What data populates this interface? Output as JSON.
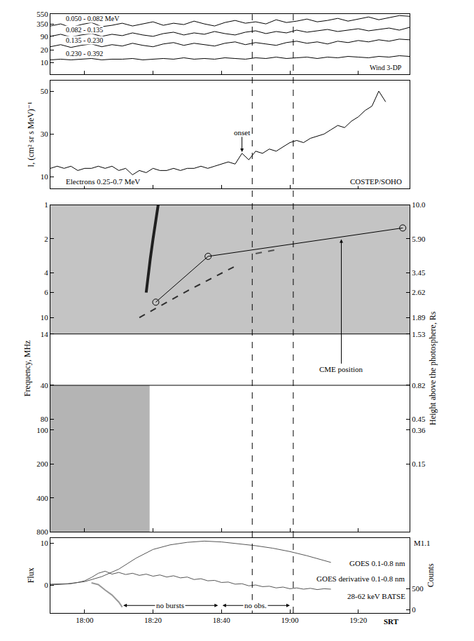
{
  "chart_data": {
    "type": "multi_panel",
    "xlim": [
      1070,
      1175
    ],
    "xticks": [
      {
        "value": 1080,
        "label": "18:00"
      },
      {
        "value": 1100,
        "label": "18:20"
      },
      {
        "value": 1120,
        "label": "18:40"
      },
      {
        "value": 1140,
        "label": "19:00"
      },
      {
        "value": 1160,
        "label": "19:20"
      }
    ],
    "x_unit": "SRT",
    "dashed_lines": [
      1129,
      1141
    ],
    "panels": [
      {
        "type": "line",
        "instrument": "Wind 3-DP",
        "ylim": [
          0,
          87
        ],
        "yticks": [
          {
            "value": 17,
            "label": "10"
          },
          {
            "value": 35,
            "label": "20"
          },
          {
            "value": 55,
            "label": "90"
          },
          {
            "value": 73,
            "label": "350"
          },
          {
            "value": 87,
            "label": "550"
          }
        ],
        "x": [
          1070,
          1073,
          1076,
          1079,
          1082,
          1085,
          1088,
          1091,
          1094,
          1097,
          1100,
          1103,
          1106,
          1109,
          1112,
          1115,
          1118,
          1121,
          1124,
          1127,
          1130,
          1133,
          1136,
          1139,
          1142,
          1145,
          1148,
          1151,
          1154,
          1157,
          1160,
          1163,
          1166,
          1169,
          1172,
          1175
        ],
        "series": [
          {
            "name": "0.050 - 0.082 MeV",
            "color": "#000000",
            "values": [
              70,
              73,
              68,
              72,
              75,
              69,
              71,
              74,
              70,
              73,
              76,
              71,
              74,
              72,
              77,
              73,
              70,
              75,
              78,
              74,
              76,
              73,
              79,
              75,
              77,
              80,
              76,
              78,
              81,
              77,
              80,
              83,
              79,
              82,
              85,
              84
            ]
          },
          {
            "name": "0.082 - 0.135",
            "color": "#000000",
            "values": [
              55,
              58,
              54,
              57,
              59,
              55,
              58,
              56,
              60,
              57,
              55,
              59,
              61,
              57,
              60,
              58,
              62,
              59,
              57,
              61,
              63,
              59,
              62,
              60,
              64,
              61,
              63,
              65,
              62,
              64,
              66,
              63,
              65,
              67,
              64,
              68
            ]
          },
          {
            "name": "0.135 - 0.230",
            "color": "#000000",
            "values": [
              40,
              43,
              39,
              42,
              44,
              40,
              43,
              41,
              45,
              42,
              40,
              44,
              46,
              42,
              45,
              43,
              41,
              45,
              47,
              43,
              46,
              44,
              42,
              46,
              48,
              45,
              47,
              44,
              48,
              46,
              49,
              47,
              50,
              48,
              51,
              50
            ]
          },
          {
            "name": "0.230 - 0.392",
            "color": "#000000",
            "values": [
              21,
              22,
              21,
              22,
              23,
              21,
              22,
              22,
              23,
              21,
              22,
              23,
              22,
              24,
              22,
              23,
              22,
              24,
              23,
              22,
              24,
              23,
              25,
              23,
              24,
              25,
              23,
              25,
              24,
              26,
              25,
              24,
              26,
              25,
              27,
              26
            ]
          }
        ]
      },
      {
        "type": "line",
        "instrument": "COSTEP/SOHO",
        "ylabel": "I, (cm² sr s MeV)⁻¹",
        "ylim": [
          4.5,
          55
        ],
        "yticks": [
          10,
          30,
          50
        ],
        "x": [
          1070,
          1072,
          1074,
          1076,
          1078,
          1080,
          1082,
          1084,
          1086,
          1088,
          1090,
          1092,
          1094,
          1096,
          1098,
          1100,
          1102,
          1104,
          1106,
          1108,
          1110,
          1112,
          1114,
          1116,
          1118,
          1120,
          1122,
          1124,
          1126,
          1128,
          1130,
          1132,
          1134,
          1136,
          1138,
          1140,
          1142,
          1144,
          1146,
          1148,
          1150,
          1152,
          1154,
          1156,
          1158,
          1160,
          1162,
          1164,
          1166,
          1168
        ],
        "series": [
          {
            "name": "Electrons 0.25-0.7 MeV",
            "color": "#000000",
            "values": [
              14,
              15,
              14,
              15,
              13,
              14,
              14,
              15,
              14,
              15,
              13,
              14,
              11,
              13,
              12,
              14,
              13,
              13,
              14,
              13,
              14,
              14,
              15,
              14,
              15,
              16,
              17,
              16,
              21,
              18,
              22,
              21,
              23,
              22,
              24,
              26,
              27,
              26,
              28,
              29,
              30,
              32,
              34,
              33,
              36,
              38,
              41,
              43,
              50,
              45
            ]
          }
        ],
        "onset": {
          "text": "onset",
          "x": 1126,
          "y": 21
        }
      },
      {
        "type": "spectrogram",
        "log": "y",
        "ylabel": "Frequency, MHz",
        "y2label": "Height above the photosphere, Rs",
        "ylim": [
          800,
          1
        ],
        "yticks": [
          1,
          2,
          4,
          6,
          10,
          14,
          40,
          80,
          100,
          200,
          400,
          800
        ],
        "y2lim": [
          800,
          1
        ],
        "y2ticks": [
          {
            "value": 1,
            "label": "10.0"
          },
          {
            "value": 2,
            "label": "5.90"
          },
          {
            "value": 4,
            "label": "3.45"
          },
          {
            "value": 6,
            "label": "2.62"
          },
          {
            "value": 10,
            "label": "1.89"
          },
          {
            "value": 14,
            "label": "1.53"
          },
          {
            "value": 40,
            "label": "0.82"
          },
          {
            "value": 80,
            "label": "0.45"
          },
          {
            "value": 100,
            "label": "0.36"
          },
          {
            "value": 200,
            "label": "0.15"
          }
        ],
        "observed": [
          {
            "x": [
              1070,
              1175
            ],
            "y": [
              1,
              14
            ],
            "color": "#c4c4c4"
          },
          {
            "x": [
              1070,
              1099
            ],
            "y": [
              40,
              800
            ],
            "color": "#b4b4b4"
          }
        ],
        "divider_lines": [
          14,
          40
        ],
        "burst_tracks": [
          {
            "x": [
              1098,
              1098.6,
              1099.2,
              1100,
              1101.5
            ],
            "values": [
              6,
              4,
              3,
              2,
              1
            ],
            "line_style": "solid",
            "color": "#202020"
          },
          {
            "x": [
              1096,
              1110,
              1124
            ],
            "values": [
              10,
              5.8,
              3.5
            ],
            "line_style": "dashed",
            "color": "#303030"
          },
          {
            "x": [
              1130,
              1136
            ],
            "values": [
              2.7,
              2.5
            ],
            "line_style": "dashed",
            "color": "#505050"
          }
        ],
        "series": [
          {
            "name": "CME position",
            "axis": "y2",
            "color": "#000000",
            "marker": "open_circle",
            "x": [
              1100.8,
              1116.1,
              1173
            ],
            "values": [
              7.3,
              2.86,
              1.6
            ]
          }
        ]
      },
      {
        "type": "line",
        "ylabel": "Flux",
        "y2label": "Counts",
        "ylim": [
          -6.7,
          11.3
        ],
        "yticks": [
          0,
          10
        ],
        "y2lim": [
          -80,
          1720
        ],
        "y2ticks": [
          0,
          500
        ],
        "peak_label": {
          "text": "M1.1",
          "y": 10
        },
        "series": [
          {
            "name": "GOES 0.1-0.8 nm",
            "color": "#555555",
            "x": [
              1070,
              1075,
              1080,
              1085,
              1090,
              1095,
              1100,
              1105,
              1110,
              1115,
              1120,
              1125,
              1130,
              1135,
              1140,
              1145,
              1150,
              1152
            ],
            "values": [
              0.2,
              0.3,
              0.8,
              2.0,
              3.8,
              6.4,
              8.5,
              9.6,
              10.2,
              10.5,
              10.3,
              9.9,
              9.4,
              8.8,
              8.0,
              7.0,
              5.9,
              5.4
            ]
          },
          {
            "name": "GOES derivative 0.1-0.8 nm",
            "color": "#555555",
            "x": [
              1070,
              1072,
              1074,
              1076,
              1078,
              1080,
              1082,
              1084,
              1086,
              1088,
              1090,
              1092,
              1094,
              1096,
              1098,
              1100,
              1102,
              1104,
              1106,
              1108,
              1110,
              1112,
              1114,
              1116,
              1118,
              1120,
              1122,
              1124,
              1126,
              1128,
              1130,
              1132,
              1134,
              1136,
              1138,
              1140,
              1142,
              1144,
              1146,
              1148,
              1150,
              1152
            ],
            "values": [
              0,
              0.1,
              0.2,
              0.3,
              0.6,
              1.0,
              1.8,
              2.8,
              3.3,
              2.6,
              3.0,
              2.5,
              2.8,
              2.3,
              2.6,
              2.1,
              2.4,
              1.9,
              2.2,
              1.7,
              1.9,
              1.3,
              1.5,
              1.0,
              1.1,
              0.6,
              0.7,
              0.2,
              0.3,
              -0.2,
              0.0,
              -0.4,
              -0.3,
              -0.7,
              -0.5,
              -0.9,
              -0.7,
              -1.0,
              -0.8,
              -1.1,
              -0.9,
              -1.0
            ]
          },
          {
            "name": "28-62 keV BATSE",
            "color": "#999999",
            "axis": "y2",
            "x": [
              1082,
              1084,
              1086,
              1088,
              1090,
              1091
            ],
            "values": [
              640,
              600,
              470,
              350,
              180,
              60
            ]
          }
        ],
        "spans": [
          {
            "text": "no bursts",
            "x": [
              1091,
              1119
            ]
          },
          {
            "text": "no obs.",
            "x": [
              1120,
              1140
            ]
          }
        ]
      }
    ]
  }
}
